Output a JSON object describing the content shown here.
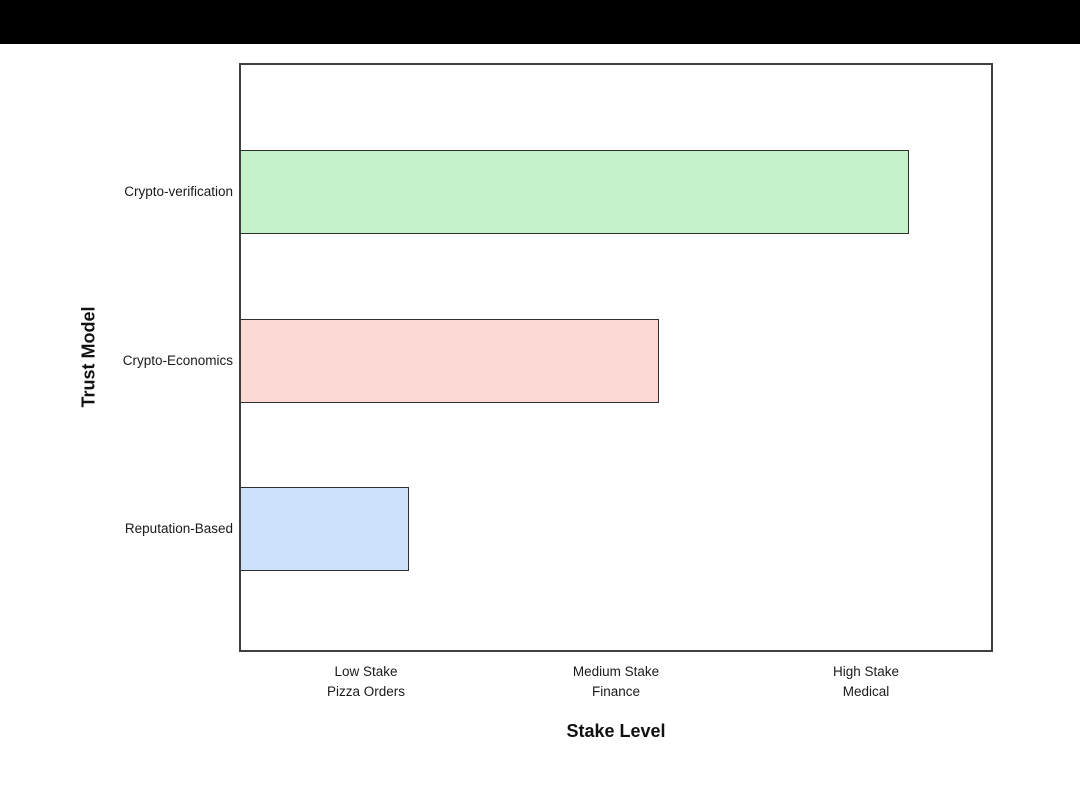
{
  "page": {
    "background": "#ffffff",
    "top_banner_color": "#000000"
  },
  "chart_data": {
    "type": "bar",
    "orientation": "horizontal",
    "title": "",
    "xlabel": "Stake Level",
    "ylabel": "Trust Model",
    "categories": [
      "Crypto-verification",
      "Crypto-Economics",
      "Reputation-Based"
    ],
    "values": [
      2.67,
      1.67,
      0.67
    ],
    "xlim": [
      0,
      3
    ],
    "x_ticks": [
      {
        "line1": "Low Stake",
        "line2": "Pizza Orders",
        "position": 0.5
      },
      {
        "line1": "Medium Stake",
        "line2": "Finance",
        "position": 1.5
      },
      {
        "line1": "High Stake",
        "line2": "Medical",
        "position": 2.5
      }
    ],
    "bar_colors": [
      "#c5f2c9",
      "#fdd9d6",
      "#cce1fa"
    ],
    "bar_border_color": "#2e2e2e",
    "axis_border_color": "#3f3f3f",
    "tick_label_color": "#1a1a1a",
    "grid": false,
    "legend": null
  }
}
